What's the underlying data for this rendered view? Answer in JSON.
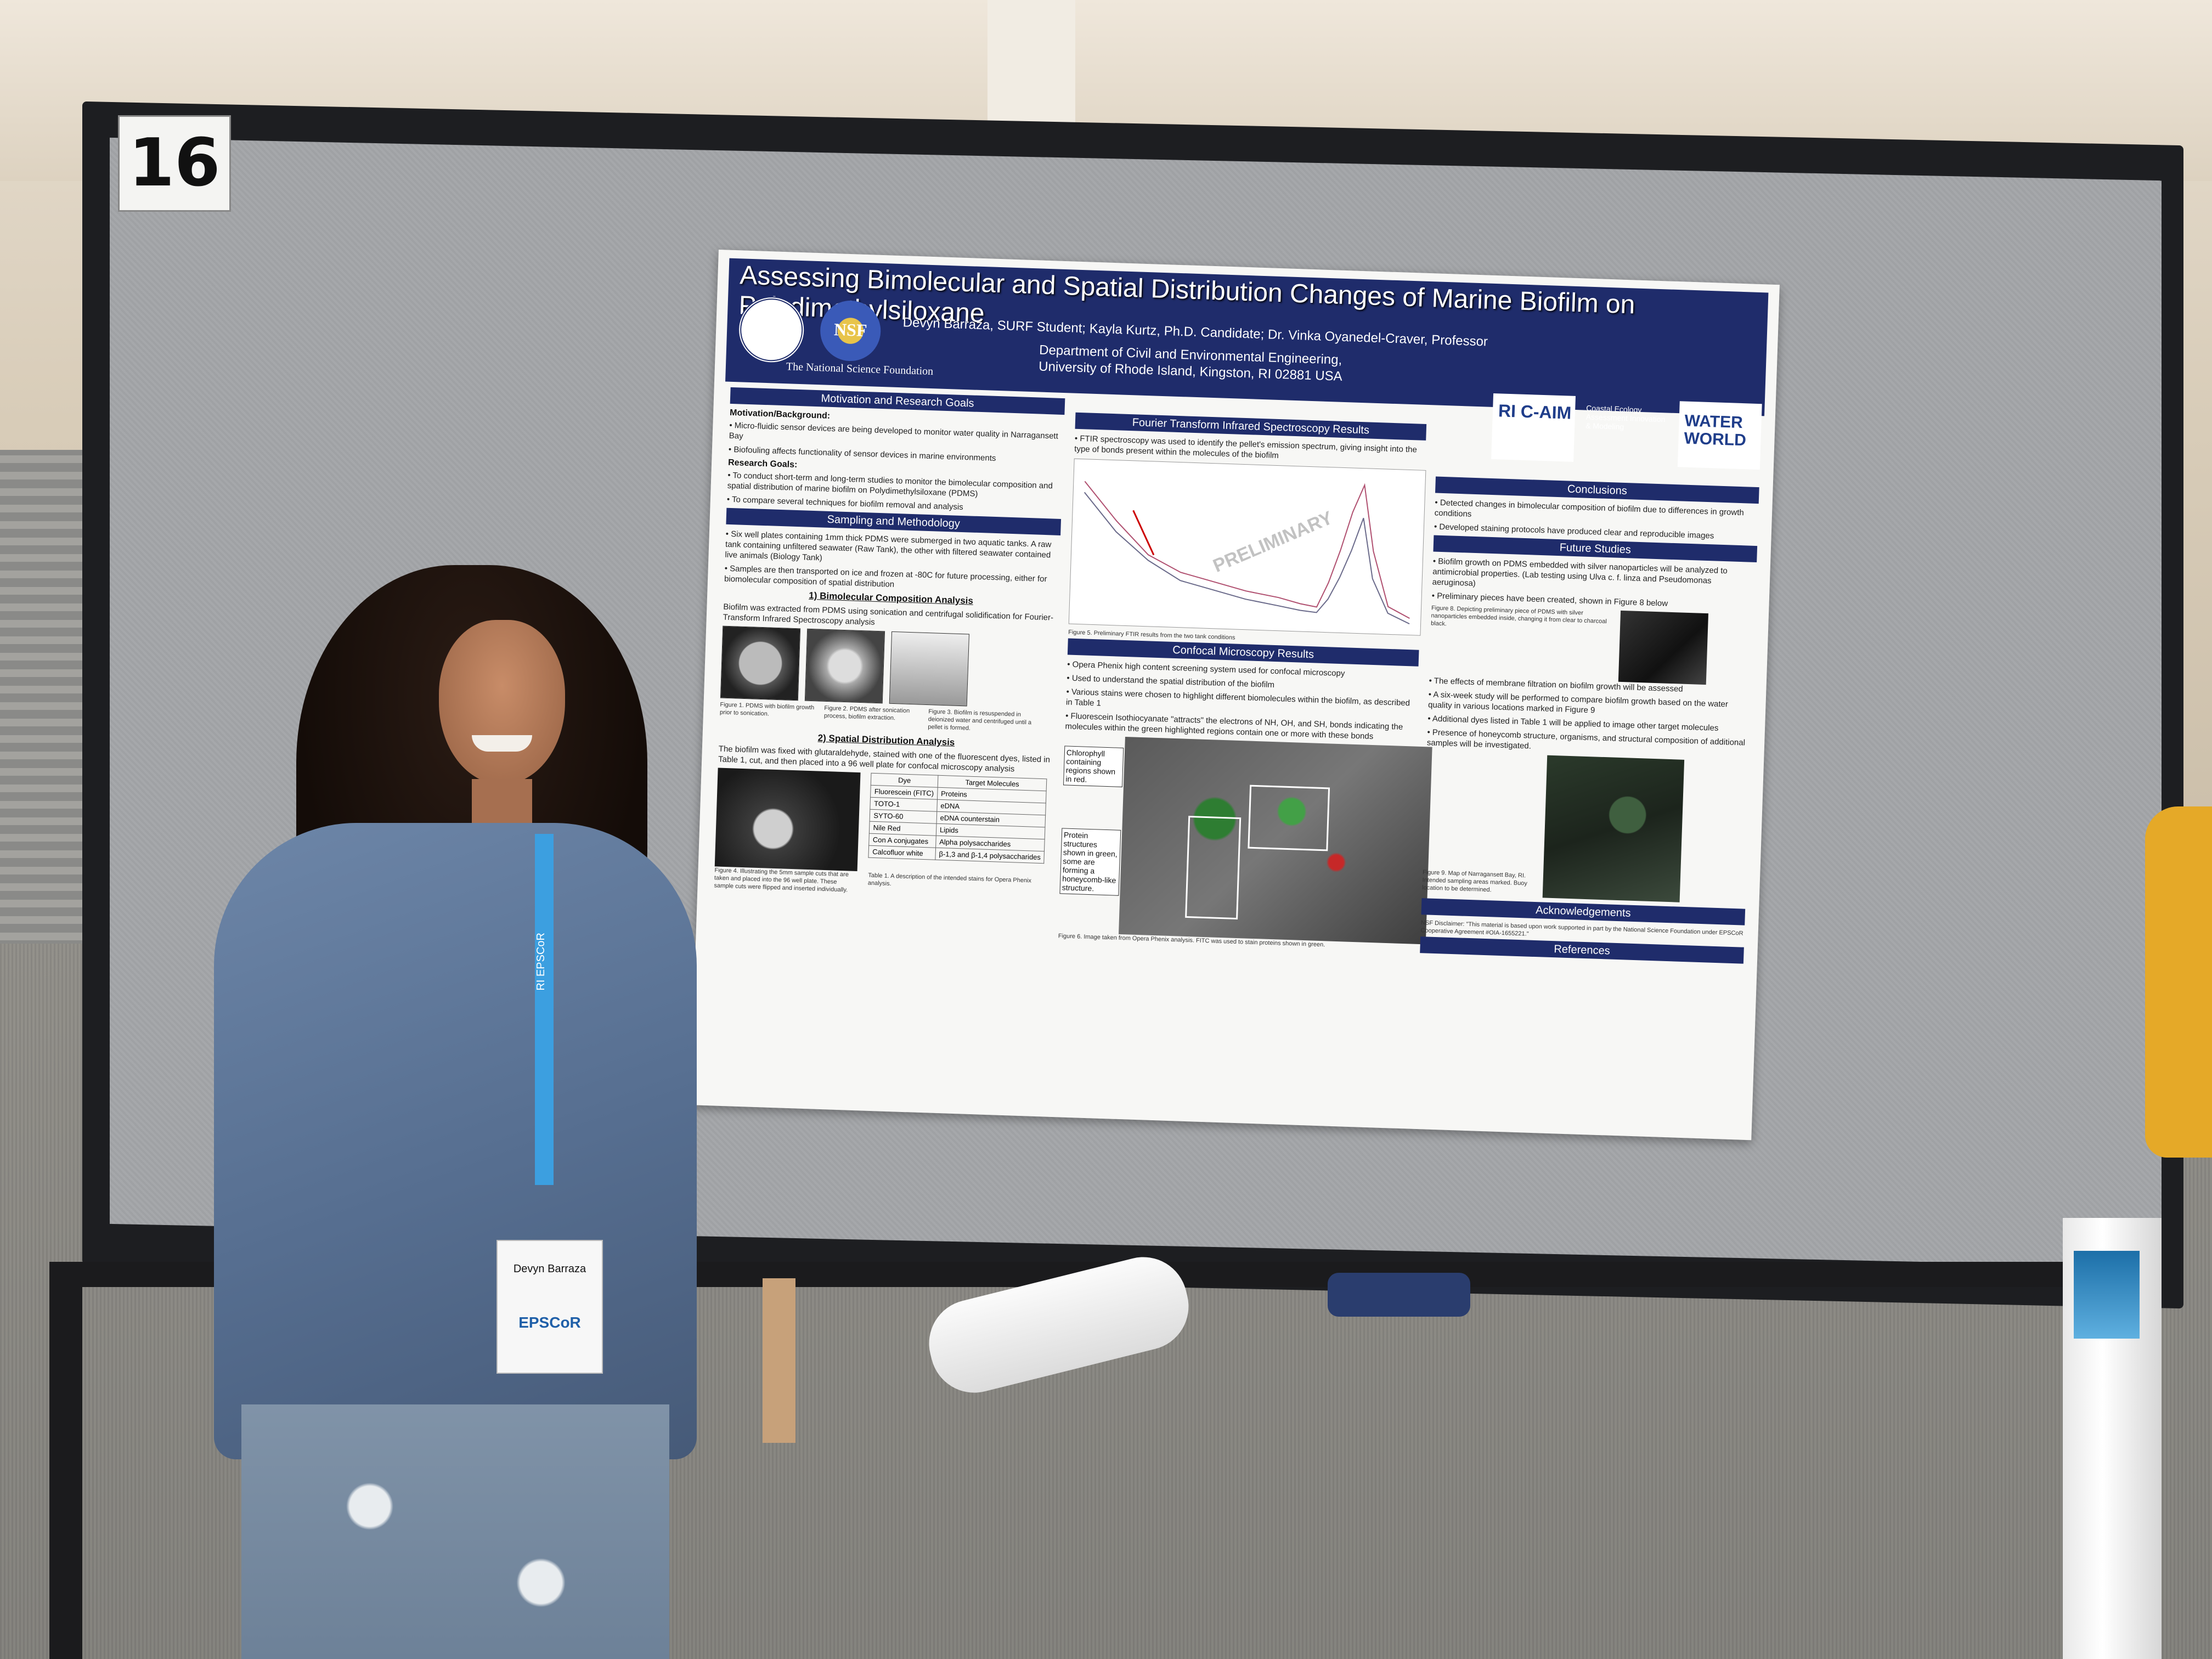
{
  "scene": {
    "booth_number": "16"
  },
  "poster": {
    "title": "Assessing Bimolecular and Spatial Distribution Changes of Marine Biofilm on Polydimethylsiloxane",
    "authors": "Devyn Barraza, SURF Student; Kayla Kurtz, Ph.D. Candidate; Dr. Vinka Oyanedel-Craver, Professor",
    "department": "Department of Civil and Environmental Engineering,",
    "university": "University of Rhode Island, Kingston, RI 02881 USA",
    "nsf_caption": "The National Science Foundation",
    "nsf_logo_text": "NSF",
    "ri_logo_text": "RI C-AIM",
    "cea_text": "Coastal Ecology Assessment Innovation & Modeling",
    "water_logo_text": "WATER WORLD",
    "motivation": {
      "header": "Motivation and Research Goals",
      "background_head": "Motivation/Background:",
      "bullets": [
        "Micro-fluidic sensor devices are being developed to monitor water quality in Narragansett Bay",
        "Biofouling affects functionality of sensor devices in marine environments"
      ],
      "goals_head": "Research Goals:",
      "goals": [
        "To conduct short-term and long-term studies to monitor the bimolecular composition and spatial distribution of marine biofilm on Polydimethylsiloxane (PDMS)",
        "To compare several techniques for biofilm removal and analysis"
      ]
    },
    "methods": {
      "header": "Sampling and Methodology",
      "bullets": [
        "Six well plates containing 1mm thick PDMS were submerged in two aquatic tanks. A raw tank containing unfiltered seawater (Raw Tank), the other with filtered seawater contained live animals (Biology Tank)",
        "Samples are then transported on ice and frozen at -80C for future processing, either for biomolecular composition of spatial distribution"
      ],
      "sub1": "1) Bimolecular Composition Analysis",
      "sub1_text": "Biofilm was extracted from PDMS using sonication and centrifugal solidification for Fourier-Transform Infrared Spectroscopy analysis",
      "fig1": "Figure 1. PDMS with biofilm growth prior to sonication.",
      "fig2": "Figure 2. PDMS after sonication process, biofilm extraction.",
      "fig3": "Figure 3. Biofilm is resuspended in deionized water and centrifuged until a pellet is formed.",
      "sub2": "2) Spatial Distribution Analysis",
      "sub2_text": "The biofilm was fixed with glutaraldehyde, stained with one of the fluorescent dyes, listed in Table 1, cut, and then placed into a 96 well plate for confocal microscopy analysis",
      "fig4": "Figure 4. Illustrating the 5mm sample cuts that are taken and placed into the 96 well plate. These sample cuts were flipped and inserted individually.",
      "table_caption": "Table 1. A description of the intended stains for Opera Phenix analysis.",
      "table_headers": [
        "Dye",
        "Target Molecules"
      ],
      "table_rows": [
        [
          "Fluorescein (FITC)",
          "Proteins"
        ],
        [
          "TOTO-1",
          "eDNA"
        ],
        [
          "SYTO-60",
          "eDNA counterstain"
        ],
        [
          "Nile Red",
          "Lipids"
        ],
        [
          "Con A conjugates",
          "Alpha polysaccharides"
        ],
        [
          "Calcofluor white",
          "β-1,3 and β-1,4 polysaccharides"
        ]
      ]
    },
    "ftir": {
      "header": "Fourier Transform Infrared Spectroscopy Results",
      "bullet": "FTIR spectroscopy was used to identify the pellet's emission spectrum, giving insight into the type of bonds present within the molecules of the biofilm",
      "watermark": "PRELIMINARY",
      "caption": "Figure 5. Preliminary FTIR results from the two tank conditions"
    },
    "confocal": {
      "header": "Confocal Microscopy Results",
      "bullets": [
        "Opera Phenix high content screening system used for confocal microscopy",
        "Used to understand the spatial distribution of the biofilm",
        "Various stains were chosen to highlight different biomolecules within the biofilm, as described in Table 1",
        "Fluorescein Isothiocyanate \"attracts\" the electrons of NH, OH, and SH, bonds indicating the molecules within the green highlighted regions contain one or more with these bonds"
      ],
      "label_chlorophyll": "Chlorophyll containing regions shown in red.",
      "label_protein": "Protein structures shown in green, some are forming a honeycomb-like structure.",
      "caption": "Figure 6. Image taken from Opera Phenix analysis. FITC was used to stain proteins shown in green."
    },
    "conclusions": {
      "header": "Conclusions",
      "bullets": [
        "Detected changes in bimolecular composition of biofilm due to differences in growth conditions",
        "Developed staining protocols have produced clear and reproducible images"
      ]
    },
    "future": {
      "header": "Future Studies",
      "bullets": [
        "Biofilm growth on PDMS embedded with silver nanoparticles will be analyzed to antimicrobial properties. (Lab testing using Ulva c. f. linza and Pseudomonas aeruginosa)",
        "Preliminary pieces have been created, shown in Figure 8 below"
      ],
      "fig8": "Figure 8. Depicting preliminary piece of PDMS with silver nanoparticles embedded inside, changing it from clear to charcoal black.",
      "bullets2": [
        "The effects of membrane filtration on biofilm growth will be assessed",
        "A six-week study will be performed to compare biofilm growth based on the water quality in various locations marked in Figure 9",
        "Additional dyes listed in Table 1 will be applied to image other target molecules",
        "Presence of honeycomb structure, organisms, and structural composition of additional samples will be investigated."
      ],
      "fig9": "Figure 9. Map of Narragansett Bay, RI. Intended sampling areas marked. Buoy location to be determined."
    },
    "acknowledgements": {
      "header": "Acknowledgements",
      "text": "NSF Disclaimer: \"This material is based upon work supported in part by the National Science Foundation under EPSCoR Cooperative Agreement #OIA-1655221.\""
    },
    "references": {
      "header": "References"
    }
  },
  "person": {
    "lanyard_text": "RI EPSCoR",
    "badge_name": "Devyn Barraza",
    "badge_logo": "EPSCoR"
  }
}
